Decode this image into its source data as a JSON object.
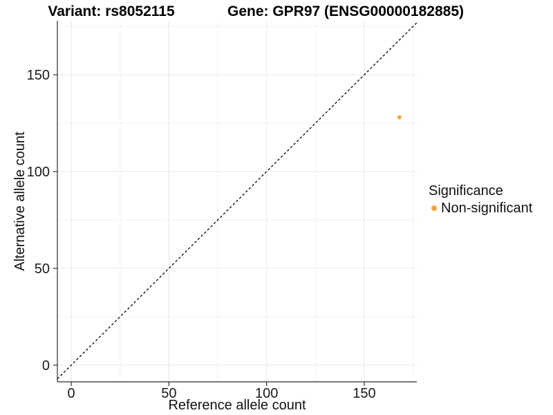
{
  "chart_data": {
    "type": "scatter",
    "title_left": "Variant: rs8052115",
    "title_right": "Gene: GPR97 (ENSG00000182885)",
    "xlabel": "Reference allele count",
    "ylabel": "Alternative allele count",
    "xlim": [
      -7.1,
      176.9
    ],
    "ylim": [
      -8.6,
      177.9
    ],
    "x_ticks": [
      0,
      50,
      100,
      150
    ],
    "y_ticks": [
      0,
      50,
      100,
      150
    ],
    "x_minor_ticks": [
      25,
      75,
      125,
      175
    ],
    "y_minor_ticks": [
      25,
      75,
      125,
      175
    ],
    "grid": "on",
    "identity_line": {
      "style": "dashed",
      "color": "#000000",
      "slope": 1,
      "intercept": 0
    },
    "series": [
      {
        "name": "Non-significant",
        "color": "#F9A242",
        "points": [
          [
            168,
            128
          ]
        ]
      }
    ],
    "legend": {
      "position": "right",
      "title": "Significance",
      "items": [
        {
          "label": "Non-significant",
          "color": "#F9A242",
          "marker": "circle"
        }
      ]
    },
    "colors": {
      "background": "#FFFFFF",
      "grid_major": "#E8E8E8",
      "grid_minor": "#F3F3F3",
      "axis_line": "#2B2B2B",
      "tick_mark": "#2B2B2B",
      "tick_text": "#1A1A1A"
    }
  }
}
